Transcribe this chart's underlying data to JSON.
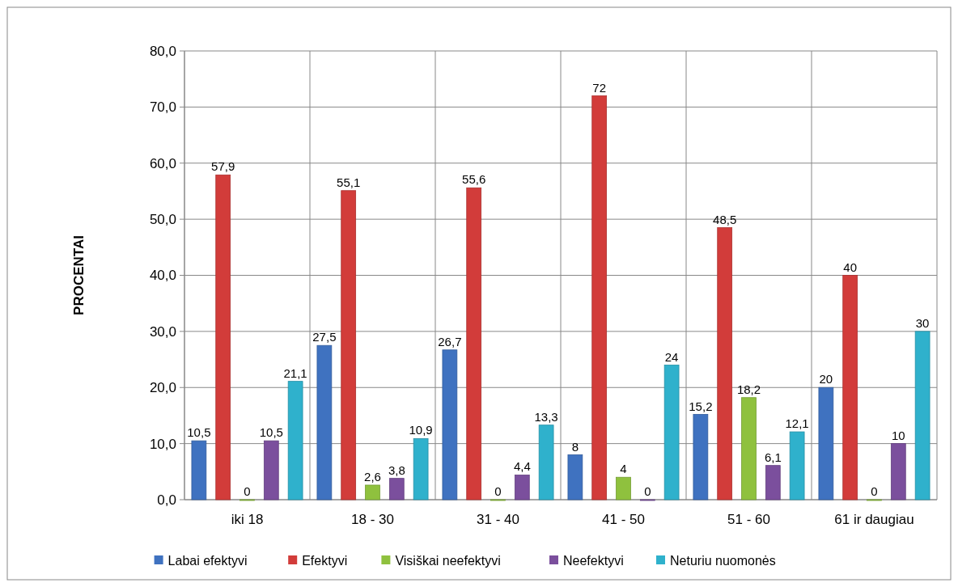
{
  "chart_data": {
    "type": "bar",
    "ylabel": "PROCENTAI",
    "categories": [
      "iki 18",
      "18 - 30",
      "31 - 40",
      "41 - 50",
      "51 - 60",
      "61 ir daugiau"
    ],
    "series": [
      {
        "name": "Labai efektyvi",
        "color": "#3f72c0",
        "values": [
          10.5,
          27.5,
          26.7,
          8,
          15.2,
          20
        ],
        "value_labels": [
          "10,5",
          "27,5",
          "26,7",
          "8",
          "15,2",
          "20"
        ]
      },
      {
        "name": "Efektyvi",
        "color": "#d23c3a",
        "values": [
          57.9,
          55.1,
          55.6,
          72,
          48.5,
          40
        ],
        "value_labels": [
          "57,9",
          "55,1",
          "55,6",
          "72",
          "48,5",
          "40"
        ]
      },
      {
        "name": "Visiškai neefektyvi",
        "color": "#8fc13e",
        "values": [
          0,
          2.6,
          0,
          4,
          18.2,
          0
        ],
        "value_labels": [
          "0",
          "2,6",
          "0",
          "4",
          "18,2",
          "0"
        ]
      },
      {
        "name": "Neefektyvi",
        "color": "#7b4f9d",
        "values": [
          10.5,
          3.8,
          4.4,
          0,
          6.1,
          10
        ],
        "value_labels": [
          "10,5",
          "3,8",
          "4,4",
          "0",
          "6,1",
          "10"
        ]
      },
      {
        "name": "Neturiu nuomonės",
        "color": "#2fb1cc",
        "values": [
          21.1,
          10.9,
          13.3,
          24,
          12.1,
          30
        ],
        "value_labels": [
          "21,1",
          "10,9",
          "13,3",
          "24",
          "12,1",
          "30"
        ]
      }
    ],
    "ylim": [
      0,
      80
    ],
    "yticks": [
      {
        "value": 0,
        "label": "0,0"
      },
      {
        "value": 10,
        "label": "10,0"
      },
      {
        "value": 20,
        "label": "20,0"
      },
      {
        "value": 30,
        "label": "30,0"
      },
      {
        "value": 40,
        "label": "40,0"
      },
      {
        "value": 50,
        "label": "50,0"
      },
      {
        "value": 60,
        "label": "60,0"
      },
      {
        "value": 70,
        "label": "70,0"
      },
      {
        "value": 80,
        "label": "80,0"
      }
    ],
    "grid": true,
    "legend": "bottom"
  }
}
